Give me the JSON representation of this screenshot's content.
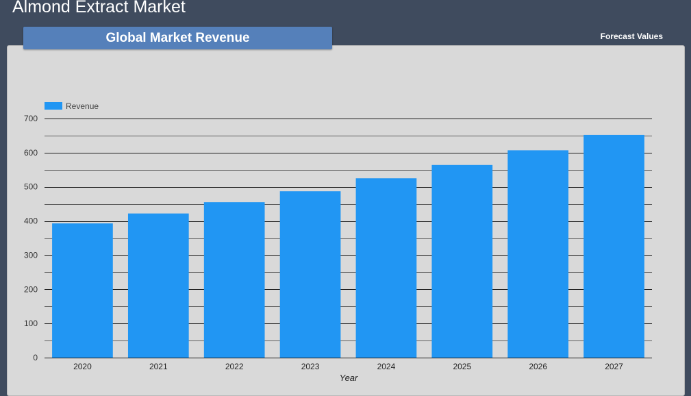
{
  "page": {
    "title": "Almond Extract Market",
    "header_tab": "Global Market Revenue",
    "forecast_link": "Forecast Values"
  },
  "colors": {
    "background": "#3f4b5e",
    "panel": "#d9d9d9",
    "header_tab": "#5580ba",
    "bar": "#2196f3"
  },
  "chart_data": {
    "type": "bar",
    "categories": [
      "2020",
      "2021",
      "2022",
      "2023",
      "2024",
      "2025",
      "2026",
      "2027"
    ],
    "series": [
      {
        "name": "Revenue",
        "values": [
          393,
          422,
          455,
          487,
          525,
          564,
          607,
          652
        ]
      }
    ],
    "xlabel": "Year",
    "ylabel": "",
    "ylim": [
      0,
      700
    ],
    "yticks": [
      0,
      100,
      200,
      300,
      400,
      500,
      600,
      700
    ],
    "grid": true,
    "legend": "top-left"
  }
}
